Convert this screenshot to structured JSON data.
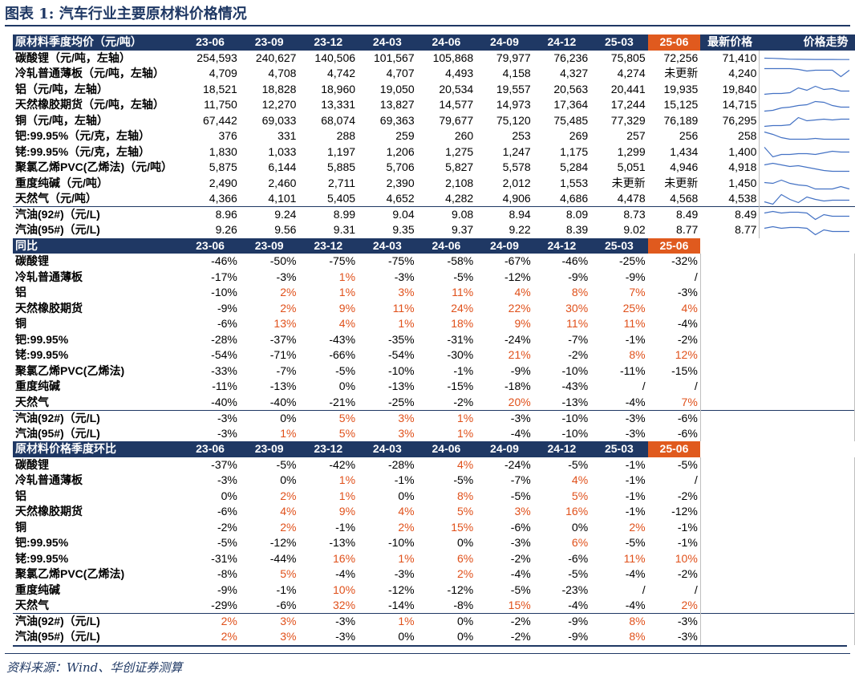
{
  "title": "图表 1:  汽车行业主要原材料价格情况",
  "source": "资料来源：Wind、华创证券测算",
  "colors": {
    "header_bg": "#1f3864",
    "highlight": "#e05a1e",
    "positive": "#e0501a"
  },
  "price_section": {
    "header": [
      "原材料季度均价（元/吨）",
      "23-06",
      "23-09",
      "23-12",
      "24-03",
      "24-06",
      "24-09",
      "24-12",
      "25-03",
      "25-06",
      "最新价格",
      "价格走势"
    ],
    "rows": [
      {
        "label": "碳酸锂（元/吨，左轴）",
        "values": [
          "254,593",
          "240,627",
          "140,506",
          "101,567",
          "105,868",
          "79,977",
          "76,236",
          "75,805",
          "72,256",
          "71,410"
        ],
        "trend": [
          8,
          8.2,
          8.6,
          9.3,
          9.4,
          9.5,
          9.6,
          9.6,
          9.6,
          9.7,
          9.7
        ]
      },
      {
        "label": "冷轧普通薄板（元/吨，左轴）",
        "values": [
          "4,709",
          "4,708",
          "4,742",
          "4,707",
          "4,493",
          "4,158",
          "4,327",
          "4,274",
          "未更新",
          "4,240"
        ],
        "trend": [
          2,
          2,
          2,
          2,
          3,
          5,
          4,
          4,
          4,
          12,
          4
        ]
      },
      {
        "label": "铝（元/吨，左轴）",
        "values": [
          "18,521",
          "18,828",
          "18,960",
          "19,050",
          "20,534",
          "19,557",
          "20,563",
          "20,441",
          "19,935",
          "19,840"
        ],
        "trend": [
          14,
          13,
          13,
          12,
          6,
          9,
          4,
          8,
          7,
          10,
          10
        ]
      },
      {
        "label": "天然橡胶期货（元/吨，左轴）",
        "values": [
          "11,750",
          "12,270",
          "13,331",
          "13,827",
          "14,577",
          "14,973",
          "17,364",
          "17,244",
          "15,125",
          "14,715"
        ],
        "trend": [
          16,
          15,
          12,
          11,
          9,
          8,
          4,
          5,
          9,
          11,
          11
        ]
      },
      {
        "label": "铜（元/吨，左轴）",
        "values": [
          "67,442",
          "69,033",
          "68,074",
          "69,363",
          "79,677",
          "75,120",
          "75,485",
          "77,329",
          "76,189",
          "76,295"
        ],
        "trend": [
          15,
          14,
          14,
          13,
          4,
          8,
          7,
          6,
          7,
          6,
          6
        ]
      },
      {
        "label": "钯:99.95%（元/克，左轴）",
        "values": [
          "376",
          "331",
          "288",
          "259",
          "260",
          "253",
          "269",
          "257",
          "256",
          "258"
        ],
        "trend": [
          3,
          6,
          10,
          12,
          12,
          12,
          11,
          12,
          12,
          12,
          12
        ]
      },
      {
        "label": "铑:99.95%（元/克，左轴）",
        "values": [
          "1,830",
          "1,033",
          "1,197",
          "1,206",
          "1,275",
          "1,247",
          "1,175",
          "1,299",
          "1,434",
          "1,400"
        ],
        "trend": [
          2,
          14,
          11,
          11,
          10,
          10,
          11,
          9,
          7,
          8,
          8
        ]
      },
      {
        "label": "聚氯乙烯PVC(乙烯法)（元/吨）",
        "values": [
          "5,875",
          "6,144",
          "5,885",
          "5,706",
          "5,827",
          "5,578",
          "5,284",
          "5,051",
          "4,946",
          "4,918"
        ],
        "trend": [
          5,
          3,
          5,
          7,
          6,
          8,
          10,
          12,
          13,
          13,
          13
        ]
      },
      {
        "label": "重度纯碱（元/吨）",
        "values": [
          "2,490",
          "2,460",
          "2,711",
          "2,390",
          "2,108",
          "2,012",
          "1,553",
          "未更新",
          "未更新",
          "1,450"
        ],
        "trend": [
          7,
          8,
          4,
          8,
          10,
          11,
          15,
          15,
          15,
          12,
          15
        ]
      },
      {
        "label": "天然气（元/吨）",
        "values": [
          "4,366",
          "4,101",
          "5,405",
          "4,652",
          "4,282",
          "4,906",
          "4,686",
          "4,478",
          "4,568",
          "4,538"
        ],
        "trend": [
          12,
          15,
          3,
          9,
          13,
          6,
          9,
          11,
          10,
          10,
          10
        ]
      },
      {
        "label": "汽油(92#)（元/L)",
        "values": [
          "8.96",
          "9.24",
          "8.99",
          "9.04",
          "9.08",
          "8.94",
          "8.09",
          "8.73",
          "8.49",
          "8.49"
        ],
        "trend": [
          6,
          4,
          6,
          5,
          5,
          6,
          14,
          8,
          10,
          10,
          10
        ]
      },
      {
        "label": "汽油(95#)（元/L)",
        "values": [
          "9.26",
          "9.56",
          "9.31",
          "9.35",
          "9.37",
          "9.22",
          "8.39",
          "9.02",
          "8.77",
          "8.77"
        ],
        "trend": [
          6,
          4,
          6,
          5,
          5,
          6,
          14,
          8,
          10,
          10,
          10
        ]
      }
    ]
  },
  "yoy_section": {
    "header": [
      "同比",
      "23-06",
      "23-09",
      "23-12",
      "24-03",
      "24-06",
      "24-09",
      "24-12",
      "25-03",
      "25-06"
    ],
    "rows": [
      {
        "label": "碳酸锂",
        "values": [
          "-46%",
          "-50%",
          "-75%",
          "-75%",
          "-58%",
          "-67%",
          "-46%",
          "-25%",
          "-32%"
        ]
      },
      {
        "label": "冷轧普通薄板",
        "values": [
          "-17%",
          "-3%",
          "1%",
          "-3%",
          "-5%",
          "-12%",
          "-9%",
          "-9%",
          "/"
        ]
      },
      {
        "label": "铝",
        "values": [
          "-10%",
          "2%",
          "1%",
          "3%",
          "11%",
          "4%",
          "8%",
          "7%",
          "-3%"
        ]
      },
      {
        "label": "天然橡胶期货",
        "values": [
          "-9%",
          "2%",
          "9%",
          "11%",
          "24%",
          "22%",
          "30%",
          "25%",
          "4%"
        ]
      },
      {
        "label": "铜",
        "values": [
          "-6%",
          "13%",
          "4%",
          "1%",
          "18%",
          "9%",
          "11%",
          "11%",
          "-4%"
        ]
      },
      {
        "label": "钯:99.95%",
        "values": [
          "-28%",
          "-37%",
          "-43%",
          "-35%",
          "-31%",
          "-24%",
          "-7%",
          "-1%",
          "-2%"
        ]
      },
      {
        "label": "铑:99.95%",
        "values": [
          "-54%",
          "-71%",
          "-66%",
          "-54%",
          "-30%",
          "21%",
          "-2%",
          "8%",
          "12%"
        ]
      },
      {
        "label": "聚氯乙烯PVC(乙烯法)",
        "values": [
          "-33%",
          "-7%",
          "-5%",
          "-10%",
          "-1%",
          "-9%",
          "-10%",
          "-11%",
          "-15%"
        ]
      },
      {
        "label": "重度纯碱",
        "values": [
          "-11%",
          "-13%",
          "0%",
          "-13%",
          "-15%",
          "-18%",
          "-43%",
          "/",
          "/"
        ]
      },
      {
        "label": "天然气",
        "values": [
          "-40%",
          "-40%",
          "-21%",
          "-25%",
          "-2%",
          "20%",
          "-13%",
          "-4%",
          "7%"
        ]
      },
      {
        "label": "汽油(92#)（元/L)",
        "values": [
          "-3%",
          "0%",
          "5%",
          "3%",
          "1%",
          "-3%",
          "-10%",
          "-3%",
          "-6%"
        ]
      },
      {
        "label": "汽油(95#)（元/L)",
        "values": [
          "-3%",
          "1%",
          "5%",
          "3%",
          "1%",
          "-4%",
          "-10%",
          "-3%",
          "-6%"
        ]
      }
    ]
  },
  "qoq_section": {
    "header": [
      "原材料价格季度环比",
      "23-06",
      "23-09",
      "23-12",
      "24-03",
      "24-06",
      "24-09",
      "24-12",
      "25-03",
      "25-06"
    ],
    "rows": [
      {
        "label": "碳酸锂",
        "values": [
          "-37%",
          "-5%",
          "-42%",
          "-28%",
          "4%",
          "-24%",
          "-5%",
          "-1%",
          "-5%"
        ]
      },
      {
        "label": "冷轧普通薄板",
        "values": [
          "-3%",
          "0%",
          "1%",
          "-1%",
          "-5%",
          "-7%",
          "4%",
          "-1%",
          "/"
        ]
      },
      {
        "label": "铝",
        "values": [
          "0%",
          "2%",
          "1%",
          "0%",
          "8%",
          "-5%",
          "5%",
          "-1%",
          "-2%"
        ]
      },
      {
        "label": "天然橡胶期货",
        "values": [
          "-6%",
          "4%",
          "9%",
          "4%",
          "5%",
          "3%",
          "16%",
          "-1%",
          "-12%"
        ]
      },
      {
        "label": "铜",
        "values": [
          "-2%",
          "2%",
          "-1%",
          "2%",
          "15%",
          "-6%",
          "0%",
          "2%",
          "-1%"
        ]
      },
      {
        "label": "钯:99.95%",
        "values": [
          "-5%",
          "-12%",
          "-13%",
          "-10%",
          "0%",
          "-3%",
          "6%",
          "-5%",
          "-1%"
        ]
      },
      {
        "label": "铑:99.95%",
        "values": [
          "-31%",
          "-44%",
          "16%",
          "1%",
          "6%",
          "-2%",
          "-6%",
          "11%",
          "10%"
        ]
      },
      {
        "label": "聚氯乙烯PVC(乙烯法)",
        "values": [
          "-8%",
          "5%",
          "-4%",
          "-3%",
          "2%",
          "-4%",
          "-5%",
          "-4%",
          "-2%"
        ]
      },
      {
        "label": "重度纯碱",
        "values": [
          "-9%",
          "-1%",
          "10%",
          "-12%",
          "-12%",
          "-5%",
          "-23%",
          "/",
          "/"
        ]
      },
      {
        "label": "天然气",
        "values": [
          "-29%",
          "-6%",
          "32%",
          "-14%",
          "-8%",
          "15%",
          "-4%",
          "-4%",
          "2%"
        ]
      },
      {
        "label": "汽油(92#)（元/L)",
        "values": [
          "2%",
          "3%",
          "-3%",
          "1%",
          "0%",
          "-2%",
          "-9%",
          "8%",
          "-3%"
        ]
      },
      {
        "label": "汽油(95#)（元/L)",
        "values": [
          "2%",
          "3%",
          "-3%",
          "0%",
          "0%",
          "-2%",
          "-9%",
          "8%",
          "-3%"
        ]
      }
    ]
  }
}
